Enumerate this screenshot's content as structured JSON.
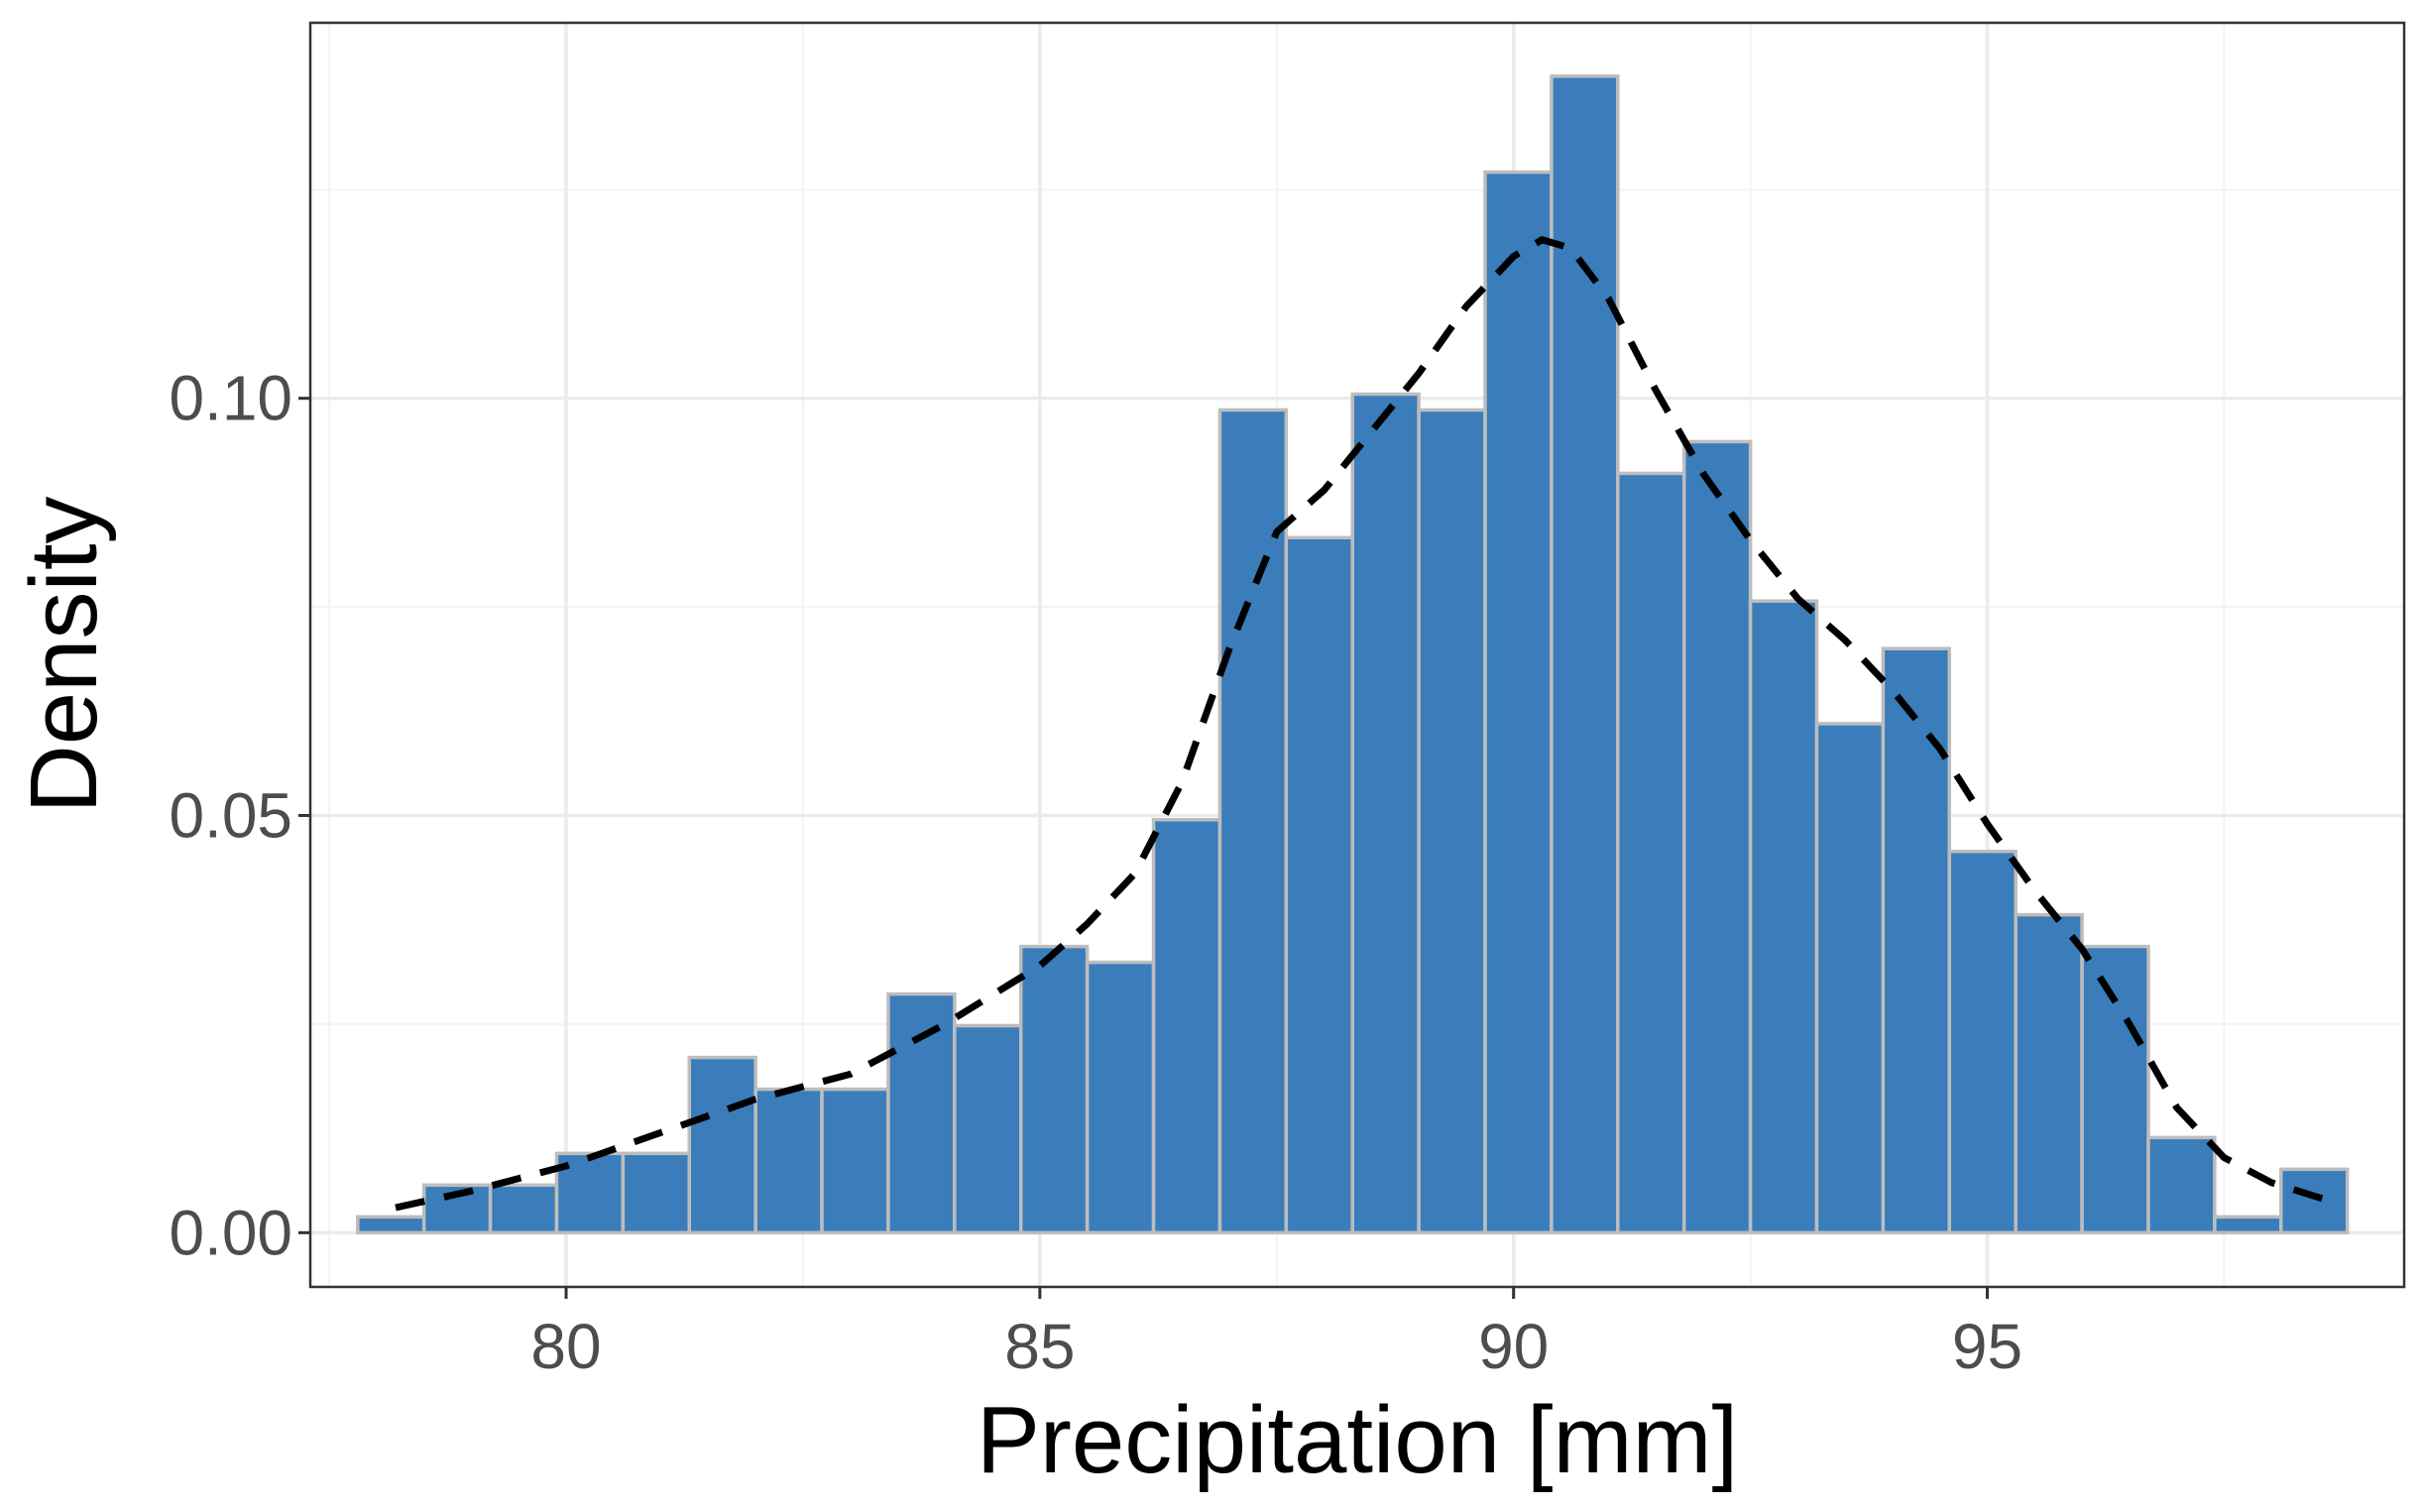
{
  "chart_data": {
    "type": "bar",
    "xlabel": "Precipitation [mm]",
    "ylabel": "Density",
    "xlim": [
      77.3,
      99.4
    ],
    "ylim": [
      -0.0065,
      0.145
    ],
    "x_ticks": [
      80,
      85,
      90,
      95
    ],
    "x_tick_labels": [
      "80",
      "85",
      "90",
      "95"
    ],
    "x_minor_ticks": [
      77.5,
      82.5,
      87.5,
      92.5,
      97.5
    ],
    "y_ticks": [
      0,
      0.05,
      0.1
    ],
    "y_tick_labels": [
      "0.00",
      "0.05",
      "0.10"
    ],
    "y_minor_ticks": [
      0.025,
      0.075,
      0.125
    ],
    "grid": true,
    "bin_width": 0.7,
    "bins": [
      {
        "x0": 77.8,
        "x1": 78.5,
        "density": 0.0019
      },
      {
        "x0": 78.5,
        "x1": 79.2,
        "density": 0.0057
      },
      {
        "x0": 79.2,
        "x1": 79.9,
        "density": 0.0057
      },
      {
        "x0": 79.9,
        "x1": 80.6,
        "density": 0.0095
      },
      {
        "x0": 80.6,
        "x1": 81.3,
        "density": 0.0095
      },
      {
        "x0": 81.3,
        "x1": 82.0,
        "density": 0.021
      },
      {
        "x0": 82.0,
        "x1": 82.7,
        "density": 0.0172
      },
      {
        "x0": 82.7,
        "x1": 83.4,
        "density": 0.0172
      },
      {
        "x0": 83.4,
        "x1": 84.1,
        "density": 0.0286
      },
      {
        "x0": 84.1,
        "x1": 84.8,
        "density": 0.0248
      },
      {
        "x0": 84.8,
        "x1": 85.5,
        "density": 0.0343
      },
      {
        "x0": 85.5,
        "x1": 86.2,
        "density": 0.0324
      },
      {
        "x0": 86.2,
        "x1": 86.9,
        "density": 0.0495
      },
      {
        "x0": 86.9,
        "x1": 87.6,
        "density": 0.0986
      },
      {
        "x0": 87.6,
        "x1": 88.3,
        "density": 0.0833
      },
      {
        "x0": 88.3,
        "x1": 89.0,
        "density": 0.1005
      },
      {
        "x0": 89.0,
        "x1": 89.7,
        "density": 0.0986
      },
      {
        "x0": 89.7,
        "x1": 90.4,
        "density": 0.1271
      },
      {
        "x0": 90.4,
        "x1": 91.1,
        "density": 0.1386
      },
      {
        "x0": 91.1,
        "x1": 91.8,
        "density": 0.091
      },
      {
        "x0": 91.8,
        "x1": 92.5,
        "density": 0.0948
      },
      {
        "x0": 92.5,
        "x1": 93.2,
        "density": 0.0757
      },
      {
        "x0": 93.2,
        "x1": 93.9,
        "density": 0.061
      },
      {
        "x0": 93.9,
        "x1": 94.6,
        "density": 0.07
      },
      {
        "x0": 94.6,
        "x1": 95.3,
        "density": 0.0457
      },
      {
        "x0": 95.3,
        "x1": 96.0,
        "density": 0.0381
      },
      {
        "x0": 96.0,
        "x1": 96.7,
        "density": 0.0343
      },
      {
        "x0": 96.7,
        "x1": 97.4,
        "density": 0.0114
      },
      {
        "x0": 97.4,
        "x1": 98.1,
        "density": 0.0019
      },
      {
        "x0": 98.1,
        "x1": 98.8,
        "density": 0.0076
      }
    ],
    "density_curve": {
      "style": "dashed",
      "color": "#000000",
      "points": [
        [
          78.2,
          0.003
        ],
        [
          79.0,
          0.005
        ],
        [
          80.0,
          0.008
        ],
        [
          81.0,
          0.012
        ],
        [
          82.0,
          0.016
        ],
        [
          83.0,
          0.019
        ],
        [
          84.0,
          0.025
        ],
        [
          85.0,
          0.032
        ],
        [
          85.5,
          0.037
        ],
        [
          86.0,
          0.043
        ],
        [
          86.5,
          0.054
        ],
        [
          87.0,
          0.07
        ],
        [
          87.5,
          0.084
        ],
        [
          88.0,
          0.089
        ],
        [
          88.5,
          0.096
        ],
        [
          89.0,
          0.103
        ],
        [
          89.5,
          0.111
        ],
        [
          90.0,
          0.117
        ],
        [
          90.3,
          0.119
        ],
        [
          90.6,
          0.118
        ],
        [
          91.0,
          0.112
        ],
        [
          91.5,
          0.101
        ],
        [
          92.0,
          0.091
        ],
        [
          92.5,
          0.083
        ],
        [
          93.0,
          0.076
        ],
        [
          93.5,
          0.071
        ],
        [
          94.0,
          0.065
        ],
        [
          94.5,
          0.058
        ],
        [
          95.0,
          0.049
        ],
        [
          95.5,
          0.041
        ],
        [
          96.0,
          0.034
        ],
        [
          96.5,
          0.025
        ],
        [
          97.0,
          0.015
        ],
        [
          97.5,
          0.009
        ],
        [
          98.0,
          0.006
        ],
        [
          98.7,
          0.0035
        ]
      ]
    },
    "colors": {
      "bar_fill": "#3a7dba",
      "bar_stroke": "#bdbdbd",
      "grid_major": "#ebebeb",
      "grid_minor": "#f3f3f3",
      "panel_border": "#333333"
    }
  }
}
